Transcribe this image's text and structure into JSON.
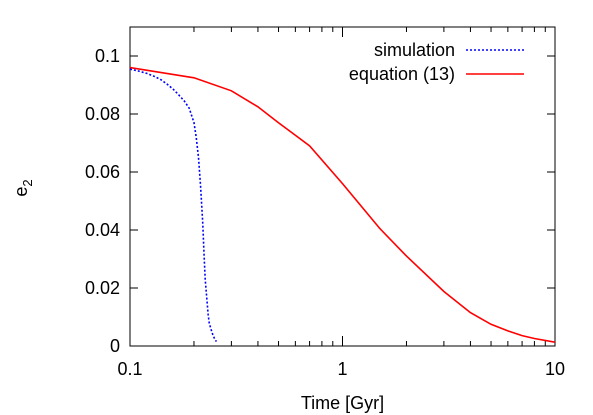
{
  "chart_data": {
    "type": "line",
    "title": "",
    "xlabel": "Time [Gyr]",
    "ylabel_base": "e",
    "ylabel_sub": "2",
    "xscale": "log",
    "xlim": [
      0.1,
      10
    ],
    "ylim": [
      0,
      0.11
    ],
    "xticks": [
      {
        "value": 0.1,
        "label": "0.1"
      },
      {
        "value": 1,
        "label": "1"
      },
      {
        "value": 10,
        "label": "10"
      }
    ],
    "yticks": [
      {
        "value": 0,
        "label": "0"
      },
      {
        "value": 0.02,
        "label": "0.02"
      },
      {
        "value": 0.04,
        "label": "0.04"
      },
      {
        "value": 0.06,
        "label": "0.06"
      },
      {
        "value": 0.08,
        "label": "0.08"
      },
      {
        "value": 0.1,
        "label": "0.1"
      }
    ],
    "grid": false,
    "legend_position": "top-right",
    "series": [
      {
        "name": "simulation",
        "color": "#0000ff",
        "style": "dotted",
        "x": [
          0.1,
          0.11,
          0.12,
          0.13,
          0.14,
          0.15,
          0.16,
          0.17,
          0.18,
          0.19,
          0.2,
          0.205,
          0.21,
          0.215,
          0.22,
          0.223,
          0.226,
          0.23,
          0.233,
          0.236,
          0.24,
          0.245,
          0.25,
          0.255
        ],
        "y": [
          0.0955,
          0.0948,
          0.094,
          0.093,
          0.0918,
          0.0902,
          0.0885,
          0.0865,
          0.0845,
          0.082,
          0.077,
          0.072,
          0.065,
          0.055,
          0.042,
          0.032,
          0.023,
          0.016,
          0.011,
          0.008,
          0.006,
          0.004,
          0.0025,
          0.0015
        ]
      },
      {
        "name": "equation (13)",
        "color": "#ff0000",
        "style": "solid",
        "x": [
          0.1,
          0.2,
          0.3,
          0.4,
          0.5,
          0.7,
          1,
          1.5,
          2,
          3,
          4,
          5,
          6,
          7,
          8,
          10
        ],
        "y": [
          0.096,
          0.0925,
          0.088,
          0.0825,
          0.077,
          0.069,
          0.056,
          0.0405,
          0.031,
          0.0188,
          0.0115,
          0.0075,
          0.0052,
          0.0036,
          0.0026,
          0.0013
        ]
      }
    ]
  }
}
